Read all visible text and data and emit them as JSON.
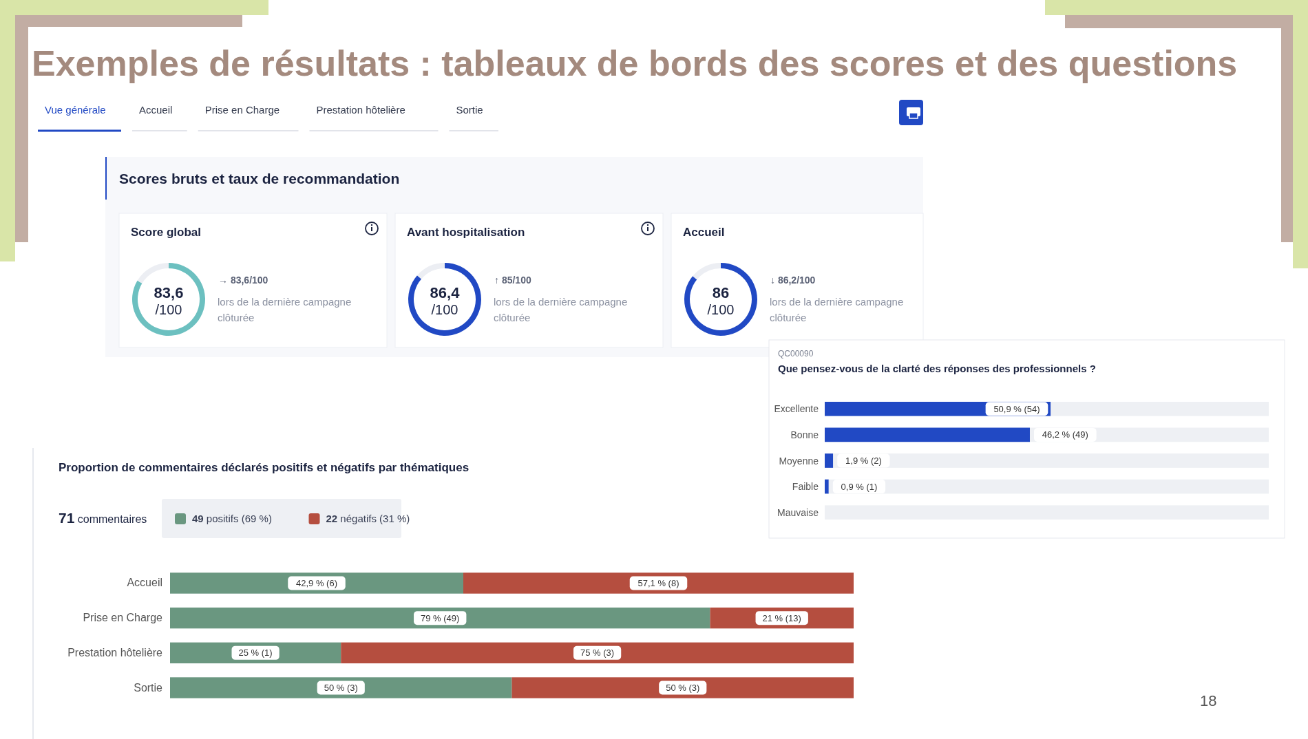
{
  "chart_data": [
    {
      "type": "other",
      "title": "Exemples de résultats : tableaux de bords des scores et des questions",
      "subtitle": "Scores bruts et taux de recommandation",
      "annotations": [
        "Vue générale",
        "Accueil",
        "Prise en Charge",
        "Prestation hôtelière",
        "Sortie",
        "18"
      ]
    },
    {
      "type": "donut",
      "title": "Score global",
      "categories": [
        null,
        null
      ],
      "values": [
        83.6,
        16.4
      ],
      "colors": [
        "#6cc0c0",
        "#eceef3"
      ],
      "value_labels": [
        "83,6",
        null
      ],
      "annotations": [
        "/100",
        "→ 83,6/100",
        "lors de la dernière campagne clôturée"
      ]
    },
    {
      "type": "donut",
      "title": "Avant hospitalisation",
      "categories": [
        null,
        null
      ],
      "values": [
        86.4,
        13.6
      ],
      "colors": [
        "#2149c4",
        "#eceef3"
      ],
      "value_labels": [
        "86,4",
        null
      ],
      "annotations": [
        "/100",
        "↑ 85/100",
        "lors de la dernière campagne clôturée"
      ]
    },
    {
      "type": "donut",
      "title": "Accueil",
      "categories": [
        null,
        null
      ],
      "values": [
        86,
        14
      ],
      "colors": [
        "#2149c4",
        "#eceef3"
      ],
      "value_labels": [
        "86",
        null
      ],
      "annotations": [
        "/100",
        "↓ 86,2/100",
        "lors de la dernière campagne clôturée"
      ]
    },
    {
      "type": "bar",
      "orientation": "horizontal",
      "stacked": true,
      "title": "Proportion de commentaires déclarés positifs et négatifs par thématiques",
      "annotations": [
        "71 commentaires"
      ],
      "legend": "top left",
      "categories": [
        "Accueil",
        "Prise en Charge",
        "Prestation hôtelière",
        "Sortie"
      ],
      "series": [
        {
          "name": "49 positifs (69 %)",
          "color": "#6a9780",
          "values": [
            42.9,
            79,
            25,
            50
          ],
          "value_labels": [
            "42,9 % (6)",
            "79 % (49)",
            "25 % (1)",
            "50 % (3)"
          ]
        },
        {
          "name": "22 négatifs (31 %)",
          "color": "#b54e3f",
          "values": [
            57.1,
            21,
            75,
            50
          ],
          "value_labels": [
            "57,1 % (8)",
            "21 % (13)",
            "75 % (3)",
            "50 % (3)"
          ]
        }
      ]
    },
    {
      "type": "bar",
      "orientation": "horizontal",
      "stacked": true,
      "subtitle": "QC00090",
      "title": "Que pensez-vous de la clarté des réponses des professionnels ?",
      "categories": [
        "Excellente",
        "Bonne",
        "Moyenne",
        "Faible",
        "Mauvaise"
      ],
      "xlim": [
        0,
        100
      ],
      "series": [
        {
          "color": "#2149c4",
          "values": [
            50.9,
            46.2,
            1.9,
            0.9,
            0
          ],
          "value_labels": [
            "50,9 % (54)",
            "46,2 % (49)",
            "1,9 % (2)",
            "0,9 % (1)",
            null
          ]
        },
        {
          "color": "#eef0f4",
          "values": [
            49.1,
            53.8,
            98.1,
            99.1,
            100
          ]
        }
      ]
    }
  ]
}
